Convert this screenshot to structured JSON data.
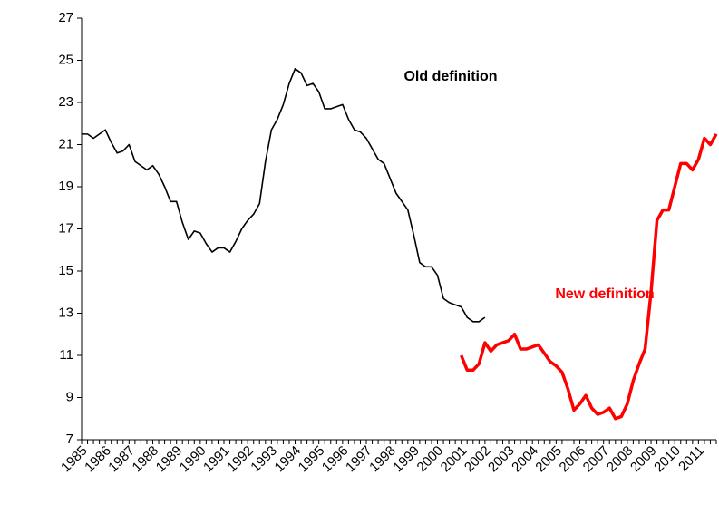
{
  "chart_data": {
    "type": "line",
    "categories": [
      "1985",
      null,
      null,
      null,
      "1986",
      null,
      null,
      null,
      "1987",
      null,
      null,
      null,
      "1988",
      null,
      null,
      null,
      "1989",
      null,
      null,
      null,
      "1990",
      null,
      null,
      null,
      "1991",
      null,
      null,
      null,
      "1992",
      null,
      null,
      null,
      "1993",
      null,
      null,
      null,
      "1994",
      null,
      null,
      null,
      "1995",
      null,
      null,
      null,
      "1996",
      null,
      null,
      null,
      "1997",
      null,
      null,
      null,
      "1998",
      null,
      null,
      null,
      "1999",
      null,
      null,
      null,
      "2000",
      null,
      null,
      null,
      "2001",
      null,
      null,
      null,
      "2002",
      null,
      null,
      null,
      "2003",
      null,
      null,
      null,
      "2004",
      null,
      null,
      null,
      "2005",
      null,
      null,
      null,
      "2006",
      null,
      null,
      null,
      "2007",
      null,
      null,
      null,
      "2008",
      null,
      null,
      null,
      "2009",
      null,
      null,
      null,
      "2010",
      null,
      null,
      null,
      "2011",
      null,
      null,
      null
    ],
    "series": [
      {
        "name": "Old definition",
        "color": "#000000",
        "values": [
          21.5,
          21.5,
          21.3,
          21.5,
          21.7,
          21.1,
          20.6,
          20.7,
          21.0,
          20.2,
          20.0,
          19.8,
          20.0,
          19.6,
          19.0,
          18.3,
          18.3,
          17.3,
          16.5,
          16.9,
          16.8,
          16.3,
          15.9,
          16.1,
          16.1,
          15.9,
          16.4,
          17.0,
          17.4,
          17.7,
          18.2,
          20.2,
          21.7,
          22.2,
          22.9,
          23.9,
          24.6,
          24.4,
          23.8,
          23.9,
          23.5,
          22.7,
          22.7,
          22.8,
          22.9,
          22.2,
          21.7,
          21.6,
          21.3,
          20.8,
          20.3,
          20.1,
          19.4,
          18.7,
          18.3,
          17.9,
          16.7,
          15.4,
          15.2,
          15.2,
          14.8,
          13.7,
          13.5,
          13.4,
          13.3,
          12.8,
          12.6,
          12.6,
          12.8,
          null,
          null,
          null,
          null,
          null,
          null,
          null,
          null,
          null,
          null,
          null,
          null,
          null,
          null,
          null,
          null,
          null,
          null,
          null,
          null,
          null,
          null,
          null,
          null,
          null,
          null,
          null,
          null,
          null,
          null,
          null,
          null,
          null,
          null,
          null,
          null,
          null,
          null,
          null
        ]
      },
      {
        "name": "New definition",
        "color": "#ff0000",
        "values": [
          null,
          null,
          null,
          null,
          null,
          null,
          null,
          null,
          null,
          null,
          null,
          null,
          null,
          null,
          null,
          null,
          null,
          null,
          null,
          null,
          null,
          null,
          null,
          null,
          null,
          null,
          null,
          null,
          null,
          null,
          null,
          null,
          null,
          null,
          null,
          null,
          null,
          null,
          null,
          null,
          null,
          null,
          null,
          null,
          null,
          null,
          null,
          null,
          null,
          null,
          null,
          null,
          null,
          null,
          null,
          null,
          null,
          null,
          null,
          null,
          null,
          null,
          null,
          null,
          11.0,
          10.3,
          10.3,
          10.6,
          11.6,
          11.2,
          11.5,
          11.6,
          11.7,
          12.0,
          11.3,
          11.3,
          11.4,
          11.5,
          11.1,
          10.7,
          10.5,
          10.2,
          9.4,
          8.4,
          8.7,
          9.1,
          8.5,
          8.2,
          8.3,
          8.5,
          8.0,
          8.1,
          8.7,
          9.8,
          10.6,
          11.3,
          14.0,
          17.4,
          17.9,
          17.9,
          19.0,
          20.1,
          20.1,
          19.8,
          20.3,
          21.3,
          21.0,
          21.5
        ]
      }
    ],
    "ylim": [
      7,
      27
    ],
    "yticks": [
      7,
      9,
      11,
      13,
      15,
      17,
      19,
      21,
      23,
      25,
      27
    ],
    "grid": false,
    "legend": "annotations"
  }
}
